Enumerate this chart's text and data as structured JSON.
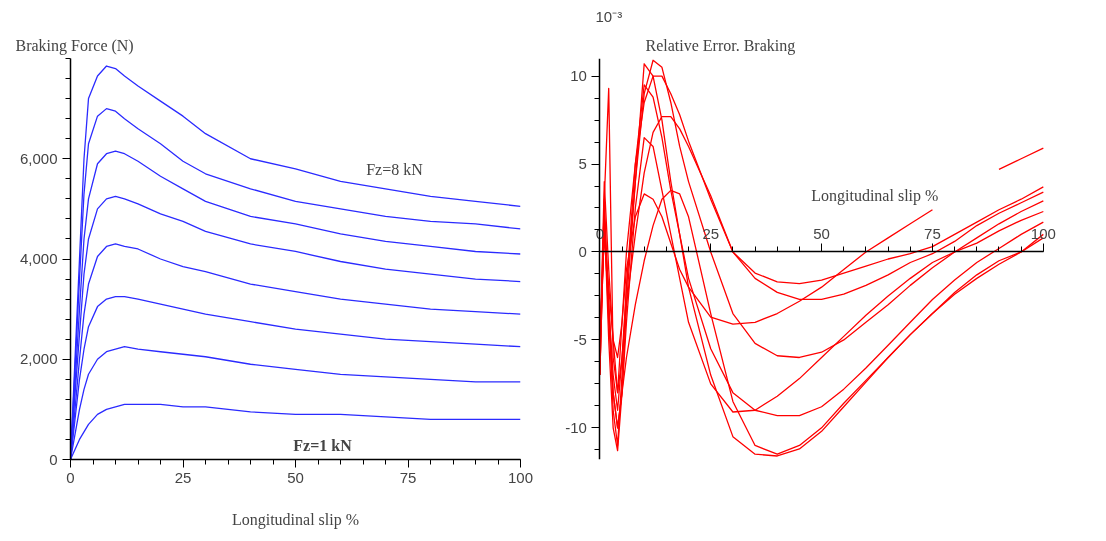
{
  "chart_data": [
    {
      "type": "line",
      "ylabel": "Braking Force (N)",
      "xlabel": "Longitudinal slip %",
      "x": [
        0,
        1,
        2,
        3,
        4,
        6,
        8,
        10,
        12,
        15,
        20,
        25,
        30,
        40,
        50,
        60,
        70,
        80,
        90,
        100
      ],
      "xlim": [
        0,
        100
      ],
      "xticks": [
        0,
        25,
        50,
        75,
        100
      ],
      "ylim": [
        0,
        8000
      ],
      "yticks": [
        0,
        {
          "value": 2000,
          "label": "2,000"
        },
        {
          "value": 4000,
          "label": "4,000"
        },
        {
          "value": 6000,
          "label": "6,000"
        }
      ],
      "grid": false,
      "marker": "none",
      "line_style": "solid",
      "annotations": [
        "Fz=8 kN",
        "Fz=1 kN"
      ],
      "series": [
        {
          "color": "#2b2bff",
          "values": [
            0,
            2000,
            4000,
            6000,
            7200,
            7650,
            7850,
            7800,
            7650,
            7450,
            7150,
            6850,
            6500,
            6000,
            5800,
            5550,
            5400,
            5250,
            5150,
            5050
          ]
        },
        {
          "color": "#2b2bff",
          "values": [
            0,
            1800,
            3600,
            5300,
            6300,
            6850,
            7000,
            6950,
            6800,
            6600,
            6300,
            5950,
            5700,
            5400,
            5150,
            5000,
            4850,
            4750,
            4700,
            4600
          ]
        },
        {
          "color": "#2b2bff",
          "values": [
            0,
            1500,
            3000,
            4400,
            5200,
            5900,
            6100,
            6150,
            6100,
            5950,
            5650,
            5400,
            5150,
            4850,
            4700,
            4500,
            4350,
            4250,
            4150,
            4100
          ]
        },
        {
          "color": "#2b2bff",
          "values": [
            0,
            1300,
            2500,
            3700,
            4400,
            5000,
            5200,
            5250,
            5200,
            5100,
            4900,
            4750,
            4550,
            4300,
            4150,
            3950,
            3800,
            3700,
            3600,
            3550
          ]
        },
        {
          "color": "#2b2bff",
          "values": [
            0,
            1000,
            2000,
            2900,
            3500,
            4050,
            4250,
            4300,
            4250,
            4200,
            4000,
            3850,
            3750,
            3500,
            3350,
            3200,
            3100,
            3000,
            2950,
            2900
          ]
        },
        {
          "color": "#2b2bff",
          "values": [
            0,
            800,
            1600,
            2200,
            2650,
            3050,
            3200,
            3250,
            3250,
            3200,
            3100,
            3000,
            2900,
            2750,
            2600,
            2500,
            2400,
            2350,
            2300,
            2250
          ]
        },
        {
          "color": "#2b2bff",
          "values": [
            0,
            500,
            1000,
            1400,
            1700,
            2000,
            2150,
            2200,
            2250,
            2200,
            2150,
            2100,
            2050,
            1900,
            1800,
            1700,
            1650,
            1600,
            1550,
            1550
          ]
        },
        {
          "color": "#2b2bff",
          "values": [
            0,
            200,
            400,
            550,
            700,
            900,
            1000,
            1050,
            1100,
            1100,
            1100,
            1050,
            1050,
            950,
            900,
            900,
            850,
            800,
            800,
            800
          ]
        }
      ]
    },
    {
      "type": "line",
      "title": "Relative Error. Braking",
      "ylabel": "10⁻³",
      "xlabel": "Longitudinal slip %",
      "x": [
        0,
        1,
        2,
        3,
        4,
        5,
        6,
        8,
        10,
        12,
        14,
        16,
        18,
        20,
        25,
        30,
        35,
        40,
        45,
        50,
        55,
        60,
        65,
        70,
        75,
        80,
        85,
        90,
        95,
        100
      ],
      "xlim": [
        0,
        100
      ],
      "xticks": [
        0,
        25,
        50,
        75,
        100
      ],
      "ylim": [
        -11.8,
        11
      ],
      "yticks": [
        -10,
        -5,
        0,
        5,
        10
      ],
      "grid": false,
      "marker": "none",
      "line_style": "solid",
      "series": [
        {
          "color": "#ff0000",
          "values": [
            -7,
            3,
            9.3,
            -6,
            -8,
            -4,
            0,
            5,
            8.5,
            10,
            10,
            9,
            7.8,
            6.3,
            3,
            0,
            -1.2,
            -1.7,
            -1.8,
            -1.6,
            -1.2,
            -0.8,
            -0.4,
            -0.1,
            0.3,
            1.0,
            1.7,
            2.4,
            3.0,
            3.7
          ]
        },
        {
          "color": "#ff0000",
          "values": [
            -6,
            2,
            -3,
            -7,
            -9,
            -6,
            -3,
            1,
            4.5,
            6.8,
            7.7,
            7.7,
            7,
            6,
            3.2,
            0,
            -1.5,
            -2.3,
            -2.7,
            -2.7,
            -2.4,
            -1.9,
            -1.3,
            -0.6,
            -0.1,
            0.6,
            1.5,
            2.2,
            2.8,
            3.4
          ]
        },
        {
          "color": "#ff0000",
          "values": [
            -5,
            1,
            -2,
            -5,
            -6,
            -4,
            -1,
            2,
            3.3,
            3,
            2,
            0.5,
            -1,
            -2,
            -3.7,
            -4.1,
            -4,
            -3.5,
            -2.8,
            -2,
            -1,
            0,
            0.8,
            1.6,
            2.4,
            null,
            null,
            4.7,
            5.3,
            5.9
          ]
        },
        {
          "color": "#ff0000",
          "values": [
            -6,
            4,
            -1,
            -5,
            -8,
            -6,
            -2,
            4,
            9,
            10.9,
            10.5,
            8.5,
            6,
            4,
            0,
            -3.5,
            -5.2,
            -5.9,
            -6,
            -5.7,
            -5,
            -4,
            -3,
            -1.9,
            -0.9,
            0,
            0.8,
            1.6,
            2.3,
            2.9
          ]
        },
        {
          "color": "#ff0000",
          "values": [
            -7,
            2,
            -4,
            -8,
            -10,
            -8,
            -4,
            2.5,
            6.5,
            6,
            3.5,
            1,
            -1.5,
            -4,
            -7.5,
            -9.1,
            -9,
            -8.2,
            -7.2,
            -6,
            -4.8,
            -3.6,
            -2.5,
            -1.5,
            -0.6,
            0,
            0.5,
            1.2,
            1.8,
            2.3
          ]
        },
        {
          "color": "#ff0000",
          "values": [
            -6,
            3,
            -3,
            -9,
            -11,
            -7,
            -2,
            5,
            9.5,
            8.8,
            6.5,
            3.5,
            1,
            -1.5,
            -5.5,
            -8,
            -9,
            -9.3,
            -9.3,
            -8.8,
            -7.8,
            -6.6,
            -5.3,
            -4,
            -2.7,
            -1.6,
            -0.6,
            0.2,
            1,
            1.7
          ]
        },
        {
          "color": "#ff0000",
          "values": [
            -5,
            1,
            -3,
            -8,
            -10,
            -8,
            -6,
            -3,
            -0.5,
            1.5,
            3,
            3.5,
            3.3,
            2,
            -3.5,
            -8.5,
            -11,
            -11.5,
            -11,
            -10,
            -8.6,
            -7.3,
            -6,
            -4.7,
            -3.5,
            -2.3,
            -1.3,
            -0.5,
            0,
            1.0
          ]
        },
        {
          "color": "#ff0000",
          "values": [
            -7,
            2,
            -5,
            -10,
            -11.3,
            -8,
            -3,
            4,
            10.7,
            10,
            7.5,
            4,
            1,
            -2,
            -7,
            -10.5,
            -11.5,
            -11.6,
            -11.2,
            -10.2,
            -8.8,
            -7.4,
            -6,
            -4.7,
            -3.5,
            -2.4,
            -1.5,
            -0.7,
            0,
            0.8
          ]
        }
      ]
    }
  ]
}
